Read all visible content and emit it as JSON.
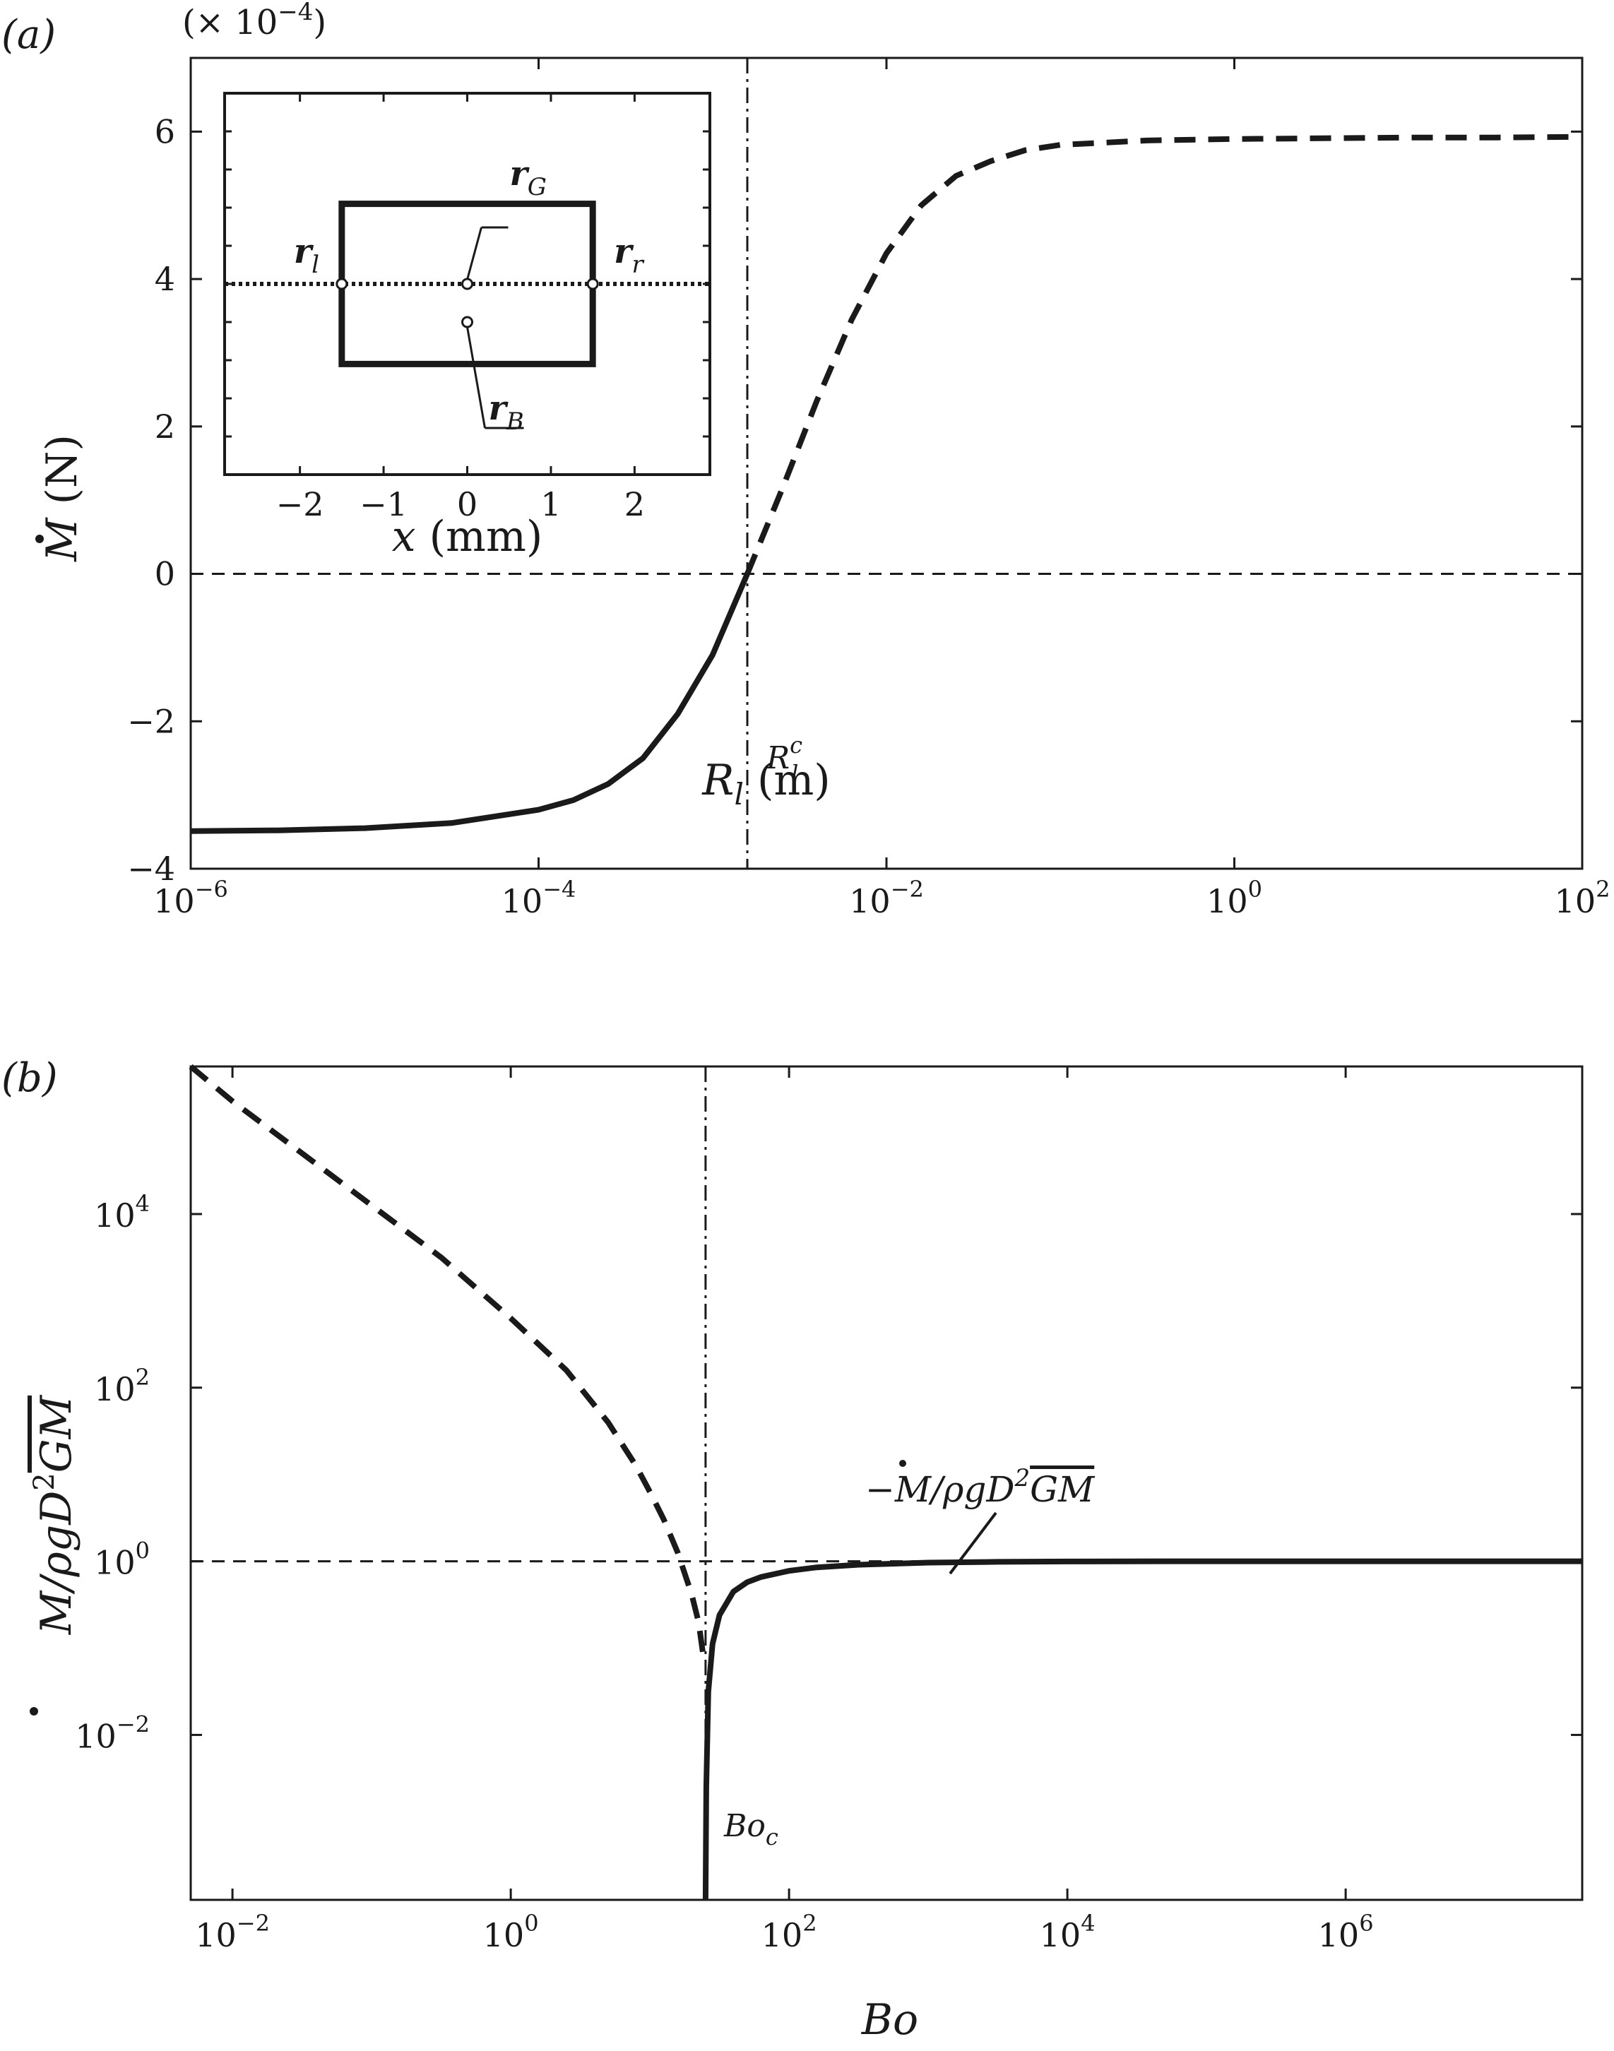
{
  "chart_data": [
    {
      "panel_label": "(a)",
      "type": "line",
      "xscale": "log",
      "xlabel": {
        "main": "R",
        "sub": "l",
        "unit": " (m)"
      },
      "ylabel": {
        "main": "M",
        "unit": " (N)"
      },
      "xlim_log10": [
        -6,
        2
      ],
      "xticks_log10": [
        -6,
        -4,
        -2,
        0,
        2
      ],
      "ylim": [
        -4,
        7
      ],
      "yticks": [
        -4,
        -2,
        0,
        2,
        4,
        6
      ],
      "ytick_labels": [
        "−4",
        "−2",
        "0",
        "2",
        "4",
        "6"
      ],
      "multiplier": {
        "base": "(× 10",
        "exp": "−4",
        "close": ")"
      },
      "hline_y": 0,
      "critical_log10_x": -2.8,
      "critical_label": {
        "main": "R",
        "sub": "l",
        "sup": "c"
      },
      "series": [
        {
          "style": "solid",
          "x_log10": [
            -6.0,
            -5.5,
            -5.0,
            -4.5,
            -4.0,
            -3.8,
            -3.6,
            -3.4,
            -3.2,
            -3.0,
            -2.8
          ],
          "y": [
            -3.49,
            -3.48,
            -3.45,
            -3.38,
            -3.2,
            -3.07,
            -2.85,
            -2.5,
            -1.9,
            -1.1,
            0.0
          ]
        },
        {
          "style": "dashed",
          "x_log10": [
            -2.8,
            -2.6,
            -2.4,
            -2.2,
            -2.0,
            -1.8,
            -1.6,
            -1.4,
            -1.2,
            -1.0,
            -0.5,
            0.0,
            0.5,
            1.0,
            1.5,
            2.0
          ],
          "y": [
            0.0,
            1.15,
            2.35,
            3.45,
            4.35,
            5.0,
            5.4,
            5.6,
            5.75,
            5.82,
            5.88,
            5.9,
            5.91,
            5.92,
            5.92,
            5.93
          ]
        }
      ],
      "inset": {
        "xlabel": "x (mm)",
        "xlim": [
          -2.9,
          2.9
        ],
        "xticks": [
          -2,
          -1,
          0,
          1,
          2
        ],
        "xtick_labels": [
          "−2",
          "−1",
          "0",
          "1",
          "2"
        ],
        "ylim": [
          -1,
          1
        ],
        "body_x": [
          -1.5,
          1.5
        ],
        "body_y": [
          -0.42,
          0.42
        ],
        "points": [
          {
            "name": "rl",
            "main": "r",
            "sub": "l",
            "x": -1.5,
            "y": 0.0
          },
          {
            "name": "rG",
            "main": "r",
            "sub": "G",
            "x": 0.0,
            "y": 0.0
          },
          {
            "name": "rr",
            "main": "r",
            "sub": "r",
            "x": 1.5,
            "y": 0.0
          },
          {
            "name": "rB",
            "main": "r",
            "sub": "B",
            "x": 0.0,
            "y": -0.2
          }
        ]
      }
    },
    {
      "panel_label": "(b)",
      "type": "line",
      "xscale": "log",
      "yscale": "log",
      "xlabel": "Bo",
      "ylabel": {
        "main": "M",
        "rest": "/ρgD",
        "sup": "2",
        "over": "GM"
      },
      "xlim_log10": [
        -2.3,
        7.7
      ],
      "xticks_log10": [
        -2,
        0,
        2,
        4,
        6
      ],
      "ylim_log10": [
        -3.9,
        5.7
      ],
      "yticks_log10": [
        -2,
        0,
        2,
        4
      ],
      "hline_y_log10": 0,
      "critical_log10_x": 1.4,
      "critical_label": {
        "main": "Bo",
        "sub": "c"
      },
      "annotation": {
        "prefix": "−",
        "main": "M",
        "rest": "/ρgD",
        "sup": "2",
        "over": "GM"
      },
      "series": [
        {
          "style": "dashed",
          "x_log10": [
            -2.3,
            -2.0,
            -1.5,
            -1.0,
            -0.5,
            0.0,
            0.4,
            0.7,
            0.9,
            1.0,
            1.1,
            1.2,
            1.3,
            1.35,
            1.38
          ],
          "y_log10": [
            5.7,
            5.3,
            4.7,
            4.1,
            3.5,
            2.8,
            2.2,
            1.6,
            1.1,
            0.8,
            0.48,
            0.1,
            -0.38,
            -0.7,
            -1.05
          ]
        },
        {
          "style": "solid",
          "x_log10": [
            1.4,
            1.405,
            1.42,
            1.45,
            1.5,
            1.6,
            1.7,
            1.8,
            2.0,
            2.2,
            2.5,
            3.0,
            3.5,
            4.0,
            5.0,
            6.0,
            7.7
          ],
          "y_log10": [
            -3.9,
            -2.6,
            -1.5,
            -0.95,
            -0.62,
            -0.35,
            -0.24,
            -0.18,
            -0.11,
            -0.07,
            -0.04,
            -0.015,
            -0.006,
            -0.002,
            0.0,
            0.0,
            0.0
          ]
        }
      ]
    }
  ]
}
